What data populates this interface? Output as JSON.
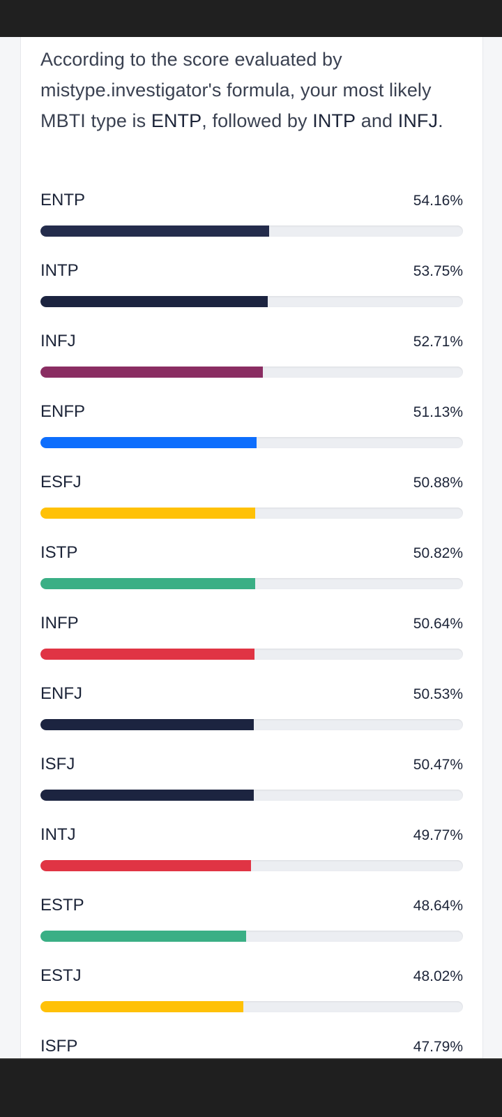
{
  "summary": {
    "prefix": "According to the score evaluated by mistype.investigator's formula, your most likely MBTI type is ",
    "top1": "ENTP",
    "mid1": ", followed by ",
    "top2": "INTP",
    "mid2": " and ",
    "top3": "INFJ",
    "suffix": "."
  },
  "results": [
    {
      "type": "ENTP",
      "percent_label": "54.16%",
      "percent": 54.16,
      "color": "#242c4c"
    },
    {
      "type": "INTP",
      "percent_label": "53.75%",
      "percent": 53.75,
      "color": "#1c2440"
    },
    {
      "type": "INFJ",
      "percent_label": "52.71%",
      "percent": 52.71,
      "color": "#8a2d62"
    },
    {
      "type": "ENFP",
      "percent_label": "51.13%",
      "percent": 51.13,
      "color": "#0d6efd"
    },
    {
      "type": "ESFJ",
      "percent_label": "50.88%",
      "percent": 50.88,
      "color": "#ffc107"
    },
    {
      "type": "ISTP",
      "percent_label": "50.82%",
      "percent": 50.82,
      "color": "#3aaf85"
    },
    {
      "type": "INFP",
      "percent_label": "50.64%",
      "percent": 50.64,
      "color": "#e03444"
    },
    {
      "type": "ENFJ",
      "percent_label": "50.53%",
      "percent": 50.53,
      "color": "#1c2440"
    },
    {
      "type": "ISFJ",
      "percent_label": "50.47%",
      "percent": 50.47,
      "color": "#1c2440"
    },
    {
      "type": "INTJ",
      "percent_label": "49.77%",
      "percent": 49.77,
      "color": "#e03444"
    },
    {
      "type": "ESTP",
      "percent_label": "48.64%",
      "percent": 48.64,
      "color": "#3aaf85"
    },
    {
      "type": "ESTJ",
      "percent_label": "48.02%",
      "percent": 48.02,
      "color": "#ffc107"
    },
    {
      "type": "ISFP",
      "percent_label": "47.79%",
      "percent": 47.79,
      "color": "#0d6efd"
    }
  ]
}
